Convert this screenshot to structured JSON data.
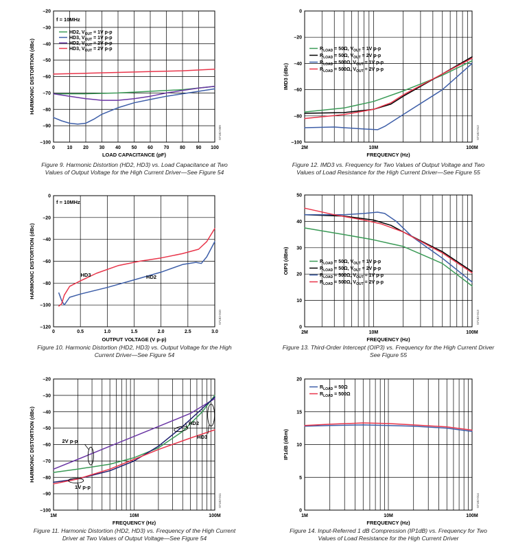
{
  "colors": {
    "green": "#3a9a56",
    "navy": "#1d1d6e",
    "purple": "#6a36a4",
    "red": "#e8354a",
    "blue": "#3d5ea8",
    "black": "#000000"
  },
  "chart_data": [
    {
      "id": "fig9",
      "type": "line",
      "title": "Figure 9. Harmonic Distortion (HD2, HD3) vs. Load Capacitance at Two Values of Output Voltage for the High Current Driver—See Figure 54",
      "caption_lines": [
        "Figure 9. Harmonic Distortion (HD2, HD3) vs. Load Capacitance at Two",
        "Values of Output Voltage for the High Current Driver—See Figure 54"
      ],
      "xlabel": "LOAD CAPACITANCE (pF)",
      "ylabel": "HARMONIC DISTORTION (dBc)",
      "xscale": "linear",
      "xlim": [
        0,
        100
      ],
      "ylim": [
        -100,
        -20
      ],
      "xticks": [
        0,
        10,
        20,
        30,
        40,
        50,
        60,
        70,
        80,
        90,
        100
      ],
      "xticklabels": [
        "0",
        "10",
        "20",
        "30",
        "40",
        "50",
        "60",
        "70",
        "80",
        "90",
        "100"
      ],
      "yticks": [
        -100,
        -90,
        -80,
        -70,
        -60,
        -50,
        -40,
        -30,
        -20
      ],
      "yticklabels": [
        "–100",
        "–90",
        "–80",
        "–70",
        "–60",
        "–50",
        "–40",
        "–30",
        "–20"
      ],
      "annotation": "f = 10MHz",
      "figure_id": "07182-009",
      "series": [
        {
          "name": "HD2, VOUT = 1V p-p",
          "legend": [
            "HD2, V",
            "OUT",
            " = 1V p-p"
          ],
          "color": "green",
          "x": [
            0,
            20,
            40,
            60,
            80,
            100
          ],
          "y": [
            -70.5,
            -70.5,
            -70,
            -69,
            -68,
            -66
          ]
        },
        {
          "name": "HD3, VOUT = 1V p-p",
          "legend": [
            "HD3, V",
            "OUT",
            " = 1V p-p"
          ],
          "color": "blue",
          "x": [
            0,
            5,
            10,
            15,
            20,
            25,
            30,
            40,
            50,
            60,
            70,
            80,
            90,
            100
          ],
          "y": [
            -85,
            -87,
            -88.5,
            -89,
            -88.5,
            -86,
            -83,
            -79,
            -76,
            -74,
            -72,
            -70.5,
            -69,
            -67.5
          ]
        },
        {
          "name": "HD2, VOUT = 2V p-p",
          "legend": [
            "HD2, V",
            "OUT",
            " = 2V p-p"
          ],
          "color": "purple",
          "x": [
            0,
            10,
            20,
            30,
            40,
            50,
            60,
            70,
            80,
            90,
            100
          ],
          "y": [
            -70.5,
            -72,
            -73.5,
            -74.5,
            -74.5,
            -73.5,
            -72,
            -70,
            -68.5,
            -67,
            -66
          ]
        },
        {
          "name": "HD3, VOUT = 2V p-p",
          "legend": [
            "HD3, V",
            "OUT",
            " = 2V p-p"
          ],
          "color": "red",
          "x": [
            0,
            20,
            40,
            60,
            80,
            100
          ],
          "y": [
            -58.5,
            -58,
            -57.5,
            -57,
            -56.5,
            -55.5
          ]
        }
      ]
    },
    {
      "id": "fig10",
      "type": "line",
      "caption_lines": [
        "Figure 10. Harmonic Distortion (HD2, HD3) vs. Output Voltage for the High",
        "Current Driver—See Figure 54"
      ],
      "xlabel": "OUTPUT VOLTAGE (V p-p)",
      "ylabel": "HARMONIC DISTORTION (dBc)",
      "xscale": "linear",
      "xlim": [
        0,
        3.0
      ],
      "ylim": [
        -120,
        0
      ],
      "xticks": [
        0,
        0.5,
        1.0,
        1.5,
        2.0,
        2.5,
        3.0
      ],
      "xticklabels": [
        "0",
        "0.5",
        "1.0",
        "1.5",
        "2.0",
        "2.5",
        "3.0"
      ],
      "yticks": [
        -120,
        -100,
        -80,
        -60,
        -40,
        -20,
        0
      ],
      "yticklabels": [
        "–120",
        "–100",
        "–80",
        "–60",
        "–40",
        "–20",
        "0"
      ],
      "annotation": "f = 10MHz",
      "figure_id": "07182-010",
      "labels": [
        {
          "text": "HD3",
          "x": 0.6,
          "y": -74
        },
        {
          "text": "HD2",
          "x": 1.82,
          "y": -76
        }
      ],
      "series": [
        {
          "name": "HD2",
          "color": "blue",
          "x": [
            0.1,
            0.15,
            0.2,
            0.3,
            0.5,
            1.0,
            1.5,
            2.0,
            2.4,
            2.65,
            2.75,
            2.85,
            3.0
          ],
          "y": [
            -89,
            -96,
            -100,
            -93,
            -90,
            -84,
            -77,
            -70,
            -63,
            -61,
            -62,
            -56,
            -42
          ]
        },
        {
          "name": "HD3",
          "color": "red",
          "x": [
            0.1,
            0.15,
            0.2,
            0.3,
            0.5,
            0.8,
            1.2,
            1.6,
            2.0,
            2.4,
            2.7,
            2.85,
            3.0
          ],
          "y": [
            -101,
            -99,
            -91,
            -83,
            -78,
            -71,
            -64,
            -60,
            -57,
            -53,
            -49,
            -42,
            -30
          ]
        }
      ]
    },
    {
      "id": "fig11",
      "type": "line",
      "caption_lines": [
        "Figure 11. Harmonic Distortion (HD2, HD3) vs. Frequency of the High Current",
        "Driver at Two Values of Output Voltage—See Figure 54"
      ],
      "xlabel": "FREQUENCY (Hz)",
      "ylabel": "HARMONIC DISTORTION (dBc)",
      "xscale": "log",
      "xlim": [
        1000000,
        100000000
      ],
      "ylim": [
        -100,
        -20
      ],
      "xticks": [
        1000000,
        10000000,
        100000000
      ],
      "xticklabels": [
        "1M",
        "10M",
        "100M"
      ],
      "yticks": [
        -100,
        -90,
        -80,
        -70,
        -60,
        -50,
        -40,
        -30,
        -20
      ],
      "yticklabels": [
        "–100",
        "–90",
        "–80",
        "–70",
        "–60",
        "–50",
        "–40",
        "–30",
        "–20"
      ],
      "figure_id": "07182-011",
      "labels": [
        {
          "text": "2V p-p",
          "x": 1600000,
          "y": -59
        },
        {
          "text": "1V p-p",
          "x": 2300000,
          "y": -87
        },
        {
          "text": "HD2",
          "x": 55000000,
          "y": -48
        },
        {
          "text": "HD3",
          "x": 70000000,
          "y": -56.5
        }
      ],
      "series": [
        {
          "name": "HD2, 2V p-p",
          "color": "purple",
          "x": [
            1000000,
            2000000,
            5000000,
            10000000,
            20000000,
            50000000,
            100000000
          ],
          "y": [
            -75,
            -69,
            -61,
            -55,
            -49,
            -41,
            -32
          ]
        },
        {
          "name": "HD3, 2V p-p",
          "color": "green",
          "x": [
            1000000,
            2000000,
            5000000,
            10000000,
            20000000,
            40000000,
            70000000,
            100000000
          ],
          "y": [
            -77,
            -75,
            -72,
            -68,
            -62,
            -52,
            -40,
            -30
          ]
        },
        {
          "name": "HD2, 1V p-p",
          "color": "navy",
          "x": [
            1000000,
            2000000,
            5000000,
            10000000,
            20000000,
            40000000,
            70000000,
            100000000
          ],
          "y": [
            -83,
            -81,
            -76,
            -70,
            -61,
            -49,
            -38,
            -31
          ]
        },
        {
          "name": "HD3, 1V p-p",
          "color": "red",
          "x": [
            1000000,
            2000000,
            5000000,
            10000000,
            20000000,
            50000000,
            100000000
          ],
          "y": [
            -84,
            -81,
            -75,
            -69,
            -63,
            -56,
            -51
          ]
        }
      ]
    },
    {
      "id": "fig12",
      "type": "line",
      "caption_lines": [
        "Figure 12. IMD3 vs. Frequency for Two Values of Output Voltage and Two",
        "Values of Load Resistance for the High Current Driver—See Figure 55"
      ],
      "xlabel": "FREQUENCY (Hz)",
      "ylabel": "IMD3 (dBc)",
      "xscale": "log",
      "xlim": [
        2000000,
        100000000
      ],
      "ylim": [
        -100,
        0
      ],
      "xticks": [
        2000000,
        10000000,
        100000000
      ],
      "xticklabels": [
        "2M",
        "10M",
        "100M"
      ],
      "yticks": [
        -100,
        -80,
        -60,
        -40,
        -20,
        0
      ],
      "yticklabels": [
        "–100",
        "–80",
        "–60",
        "–40",
        "–20",
        "0"
      ],
      "figure_id": "07182-012",
      "series": [
        {
          "name": "RLOAD = 50Ω, VOUT = 1V p-p",
          "legend": [
            "R",
            "LOAD",
            " = 50Ω, V",
            "OUT",
            " = 1V p-p"
          ],
          "color": "green",
          "x": [
            2000000,
            5000000,
            10000000,
            20000000,
            50000000,
            100000000
          ],
          "y": [
            -77,
            -74,
            -69,
            -61,
            -49,
            -38
          ]
        },
        {
          "name": "RLOAD = 50Ω, VOUT = 2V p-p",
          "legend": [
            "R",
            "LOAD",
            " = 50Ω, V",
            "OUT",
            " = 2V p-p"
          ],
          "color": "black",
          "x": [
            2000000,
            5000000,
            10000000,
            15000000,
            20000000,
            50000000,
            100000000
          ],
          "y": [
            -78,
            -77.5,
            -75,
            -71,
            -65,
            -48,
            -35
          ]
        },
        {
          "name": "RLOAD = 500Ω, VOUT = 1V p-p",
          "legend": [
            "R",
            "LOAD",
            " = 500Ω, V",
            "OUT",
            " = 1V p-p"
          ],
          "color": "blue",
          "x": [
            2000000,
            4000000,
            8000000,
            11000000,
            13000000,
            20000000,
            50000000,
            100000000
          ],
          "y": [
            -89,
            -88.5,
            -90,
            -90.5,
            -88,
            -79,
            -60,
            -40
          ]
        },
        {
          "name": "RLOAD = 500Ω, VOUT = 2V p-p",
          "legend": [
            "R",
            "LOAD",
            " = 500Ω, V",
            "OUT",
            " = 2V p-p"
          ],
          "color": "red",
          "x": [
            2000000,
            5000000,
            10000000,
            15000000,
            20000000,
            50000000,
            100000000
          ],
          "y": [
            -82,
            -79,
            -75,
            -70,
            -64,
            -48,
            -36
          ]
        }
      ]
    },
    {
      "id": "fig13",
      "type": "line",
      "caption_lines": [
        "Figure 13. Third-Order Intercept (OIP3) vs. Frequency for the High Current Driver",
        "See Figure 55"
      ],
      "xlabel": "FREQUENCY (Hz)",
      "ylabel": "OIP3 (dBm)",
      "xscale": "log",
      "xlim": [
        2000000,
        100000000
      ],
      "ylim": [
        0,
        50
      ],
      "xticks": [
        2000000,
        10000000,
        100000000
      ],
      "xticklabels": [
        "2M",
        "10M",
        "100M"
      ],
      "yticks": [
        0,
        10,
        20,
        30,
        40,
        50
      ],
      "yticklabels": [
        "0",
        "10",
        "20",
        "30",
        "40",
        "50"
      ],
      "figure_id": "07182-013",
      "series": [
        {
          "name": "RLOAD = 50Ω, VOUT = 1V p-p",
          "legend": [
            "R",
            "LOAD",
            " = 50Ω, V",
            "OUT",
            " = 1V p-p"
          ],
          "color": "green",
          "x": [
            2000000,
            5000000,
            10000000,
            15000000,
            20000000,
            50000000,
            100000000
          ],
          "y": [
            37.5,
            35,
            33,
            31.5,
            30.5,
            24,
            15.5
          ]
        },
        {
          "name": "RLOAD = 50Ω, VOUT = 2V p-p",
          "legend": [
            "R",
            "LOAD",
            " = 50Ω, V",
            "OUT",
            " = 2V p-p"
          ],
          "color": "black",
          "x": [
            2000000,
            5000000,
            10000000,
            15000000,
            20000000,
            50000000,
            100000000
          ],
          "y": [
            42.5,
            42,
            40.5,
            38.5,
            36,
            28.5,
            21
          ]
        },
        {
          "name": "RLOAD = 500Ω, VOUT = 1V p-p",
          "legend": [
            "R",
            "LOAD",
            " = 500Ω, V",
            "OUT",
            " = 1V p-p"
          ],
          "color": "blue",
          "x": [
            2000000,
            5000000,
            8000000,
            11000000,
            13000000,
            17000000,
            25000000,
            50000000,
            100000000
          ],
          "y": [
            42.5,
            42.5,
            43,
            43.5,
            43,
            40,
            34,
            26,
            17
          ]
        },
        {
          "name": "RLOAD = 500Ω, VOUT = 2V p-p",
          "legend": [
            "R",
            "LOAD",
            " = 500Ω, V",
            "OUT",
            " = 2V p-p"
          ],
          "color": "red",
          "x": [
            2000000,
            4000000,
            8000000,
            12000000,
            20000000,
            50000000,
            100000000
          ],
          "y": [
            45,
            42.5,
            40.5,
            39,
            36,
            28,
            20.5
          ]
        }
      ]
    },
    {
      "id": "fig14",
      "type": "line",
      "caption_lines": [
        "Figure 14. Input-Referred 1 dB Compression (IP1dB) vs. Frequency for Two",
        "Values of Load Resistance for the High Current Driver"
      ],
      "xlabel": "FREQUENCY (Hz)",
      "ylabel": "IP1dB (dBm)",
      "xscale": "log",
      "xlim": [
        1000000,
        100000000
      ],
      "ylim": [
        0,
        20
      ],
      "xticks": [
        1000000,
        10000000,
        100000000
      ],
      "xticklabels": [
        "1M",
        "10M",
        "100M"
      ],
      "yticks": [
        0,
        5,
        10,
        15,
        20
      ],
      "yticklabels": [
        "0",
        "5",
        "10",
        "15",
        "20"
      ],
      "figure_id": "07182-014",
      "series": [
        {
          "name": "RLOAD = 50Ω",
          "legend": [
            "R",
            "LOAD",
            " = 50Ω"
          ],
          "color": "blue",
          "x": [
            1000000,
            2000000,
            5000000,
            10000000,
            20000000,
            50000000,
            100000000
          ],
          "y": [
            12.8,
            12.9,
            13,
            12.9,
            12.8,
            12.5,
            12
          ]
        },
        {
          "name": "RLOAD = 500Ω",
          "legend": [
            "R",
            "LOAD",
            " = 500Ω"
          ],
          "color": "red",
          "x": [
            1000000,
            2000000,
            5000000,
            10000000,
            20000000,
            50000000,
            100000000
          ],
          "y": [
            12.9,
            13.1,
            13.3,
            13.2,
            13,
            12.7,
            12.2
          ]
        }
      ]
    }
  ]
}
